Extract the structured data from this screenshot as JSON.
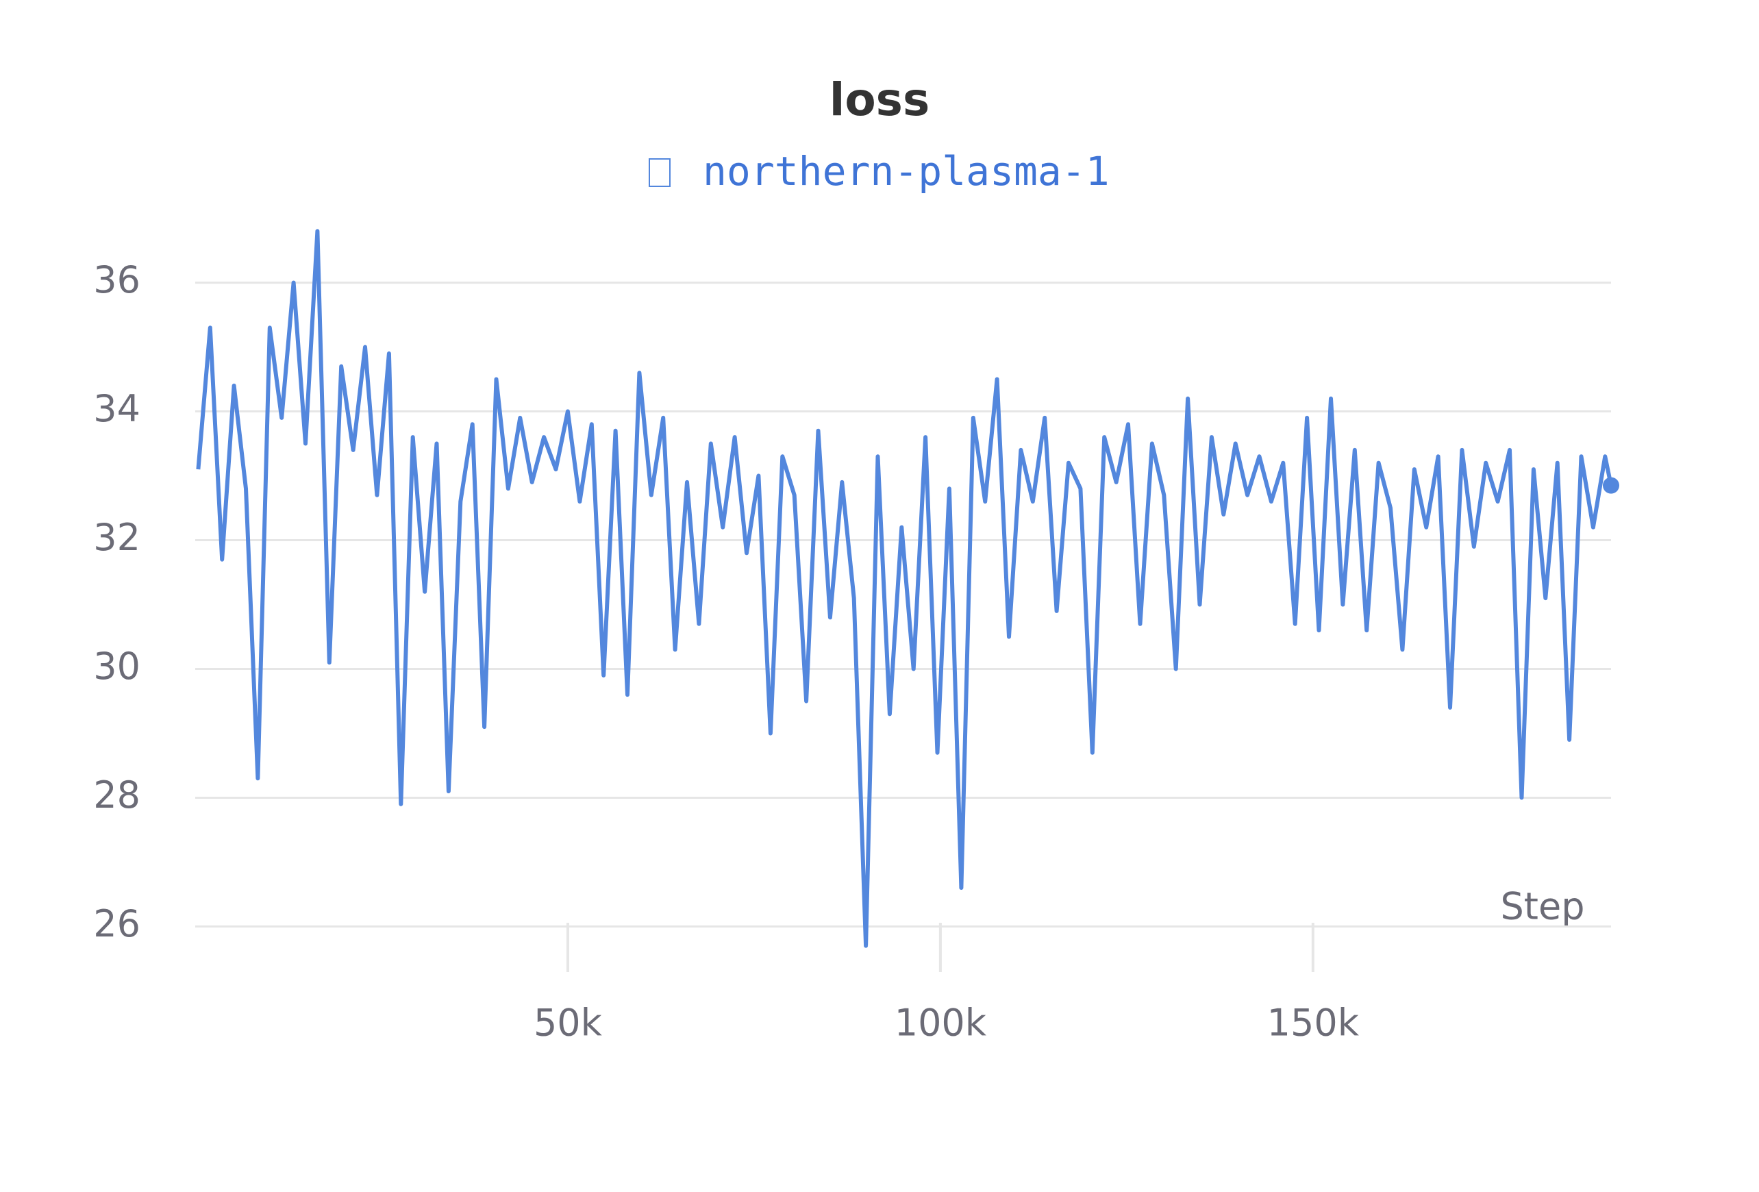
{
  "chart_data": {
    "type": "line",
    "title": "loss",
    "xlabel": "Step",
    "x": [
      400,
      2000,
      3600,
      5200,
      6800,
      8400,
      10000,
      11600,
      13200,
      14800,
      16400,
      18000,
      19600,
      21200,
      22800,
      24400,
      26000,
      27600,
      29200,
      30800,
      32400,
      34000,
      35600,
      37200,
      38800,
      40400,
      42000,
      43600,
      45200,
      46800,
      48400,
      50000,
      51600,
      53200,
      54800,
      56400,
      58000,
      59600,
      61200,
      62800,
      64400,
      66000,
      67600,
      69200,
      70800,
      72400,
      74000,
      75600,
      77200,
      78800,
      80400,
      82000,
      83600,
      85200,
      86800,
      88400,
      90000,
      91600,
      93200,
      94800,
      96400,
      98000,
      99600,
      101200,
      102800,
      104400,
      106000,
      107600,
      109200,
      110800,
      112400,
      114000,
      115600,
      117200,
      118800,
      120400,
      122000,
      123600,
      125200,
      126800,
      128400,
      130000,
      131600,
      133200,
      134800,
      136400,
      138000,
      139600,
      141200,
      142800,
      144400,
      146000,
      147600,
      149200,
      150800,
      152400,
      154000,
      155600,
      157200,
      158800,
      160400,
      162000,
      163600,
      165200,
      166800,
      168400,
      170000,
      171600,
      173200,
      174800,
      176400,
      178000,
      179600,
      181200,
      182800,
      184400,
      186000,
      187600,
      189200,
      190000
    ],
    "series": [
      {
        "name": "northern-plasma-1",
        "color": "#5387dd",
        "values": [
          33.1,
          35.3,
          31.7,
          34.4,
          32.8,
          28.3,
          35.3,
          33.9,
          36.0,
          33.5,
          36.8,
          30.1,
          34.7,
          33.4,
          35.0,
          32.7,
          34.9,
          27.9,
          33.6,
          31.2,
          33.5,
          28.1,
          32.6,
          33.8,
          29.1,
          34.5,
          32.8,
          33.9,
          32.9,
          33.6,
          33.1,
          34.0,
          32.6,
          33.8,
          29.9,
          33.7,
          29.6,
          34.6,
          32.7,
          33.9,
          30.3,
          32.9,
          30.7,
          33.5,
          32.2,
          33.6,
          31.8,
          33.0,
          29.0,
          33.3,
          32.7,
          29.5,
          33.7,
          30.8,
          32.9,
          31.1,
          25.7,
          33.3,
          29.3,
          32.2,
          30.0,
          33.6,
          28.7,
          32.8,
          26.6,
          33.9,
          32.6,
          34.5,
          30.5,
          33.4,
          32.6,
          33.9,
          30.9,
          33.2,
          32.8,
          28.7,
          33.6,
          32.9,
          33.8,
          30.7,
          33.5,
          32.7,
          30.0,
          34.2,
          31.0,
          33.6,
          32.4,
          33.5,
          32.7,
          33.3,
          32.6,
          33.2,
          30.7,
          33.9,
          30.6,
          34.2,
          31.0,
          33.4,
          30.6,
          33.2,
          32.5,
          30.3,
          33.1,
          32.2,
          33.3,
          29.4,
          33.4,
          31.9,
          33.2,
          32.6,
          33.4,
          28.0,
          33.1,
          31.1,
          33.2,
          28.9,
          33.3,
          32.2,
          33.3,
          32.85
        ]
      }
    ],
    "xlim": [
      0,
      190000
    ],
    "xticks": [
      {
        "value": 50000,
        "label": "50k"
      },
      {
        "value": 100000,
        "label": "100k"
      },
      {
        "value": 150000,
        "label": "150k"
      }
    ],
    "ylim": [
      25.6,
      36.9
    ],
    "yticks": [
      26,
      28,
      30,
      32,
      34,
      36
    ],
    "grid": true
  }
}
